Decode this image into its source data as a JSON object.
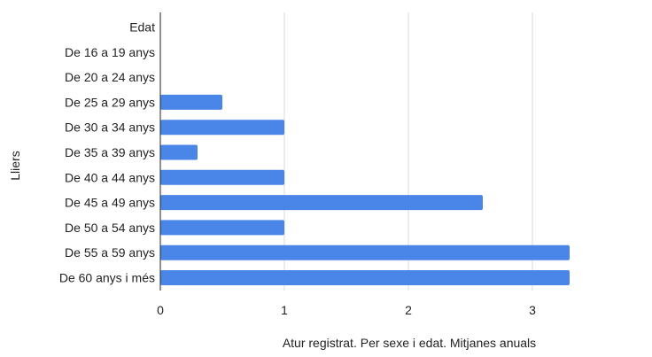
{
  "chart_data": {
    "type": "bar",
    "orientation": "horizontal",
    "categories": [
      "Edat",
      "De 16 a 19 anys",
      "De 20 a 24 anys",
      "De 25 a 29 anys",
      "De 30 a 34 anys",
      "De 35 a 39 anys",
      "De 40 a 44 anys",
      "De 45 a 49 anys",
      "De 50 a 54 anys",
      "De 55 a 59 anys",
      "De 60 anys i més"
    ],
    "values": [
      null,
      0,
      0,
      0.5,
      1,
      0.3,
      1,
      2.6,
      1,
      3.3,
      3.3
    ],
    "title": "",
    "xlabel": "Atur registrat. Per sexe i edat. Mitjanes anuals",
    "ylabel": "Lliers",
    "xlim": [
      0,
      3.5
    ],
    "x_ticks": [
      0,
      1,
      2,
      3
    ],
    "grid": true,
    "legend": "none",
    "bar_color": "#4a86e8"
  }
}
